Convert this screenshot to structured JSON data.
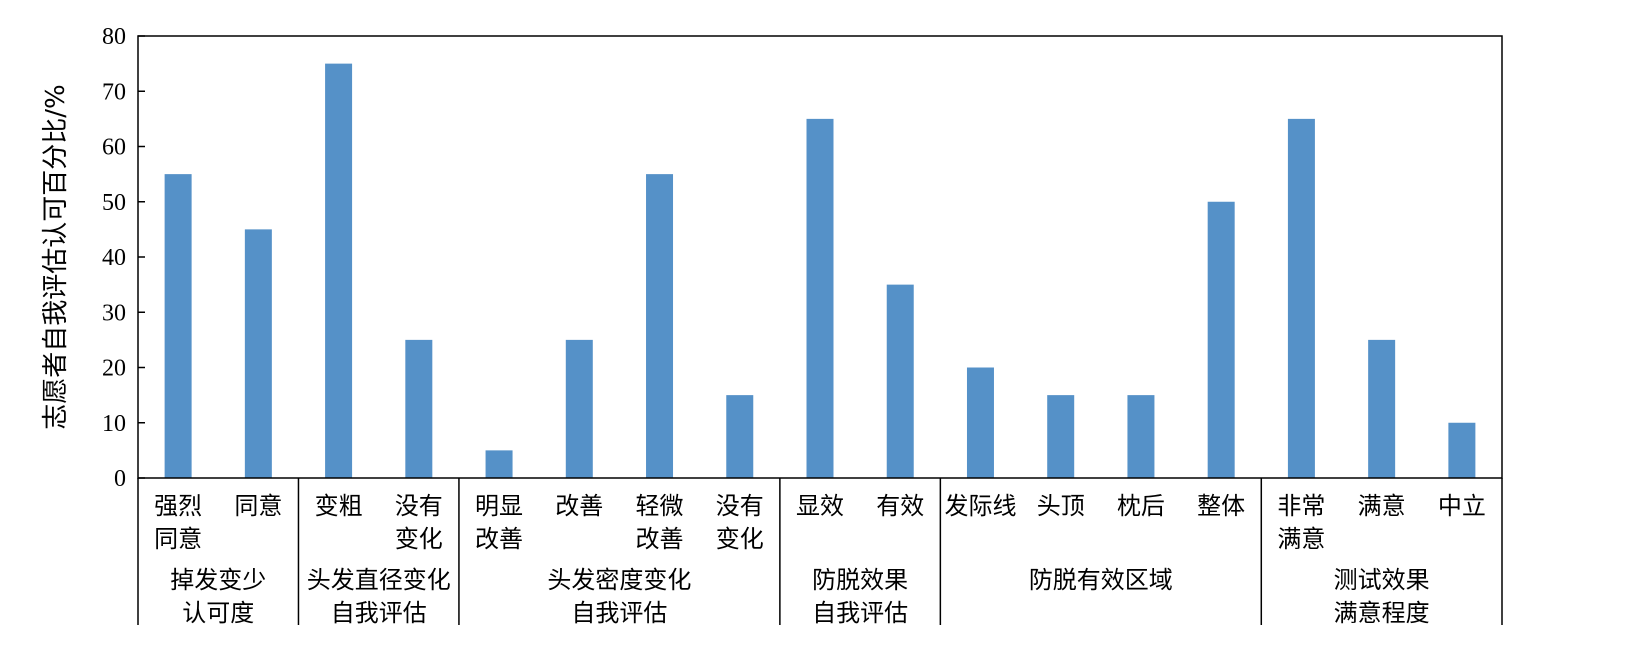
{
  "chart_data": {
    "type": "bar",
    "ylabel": "志愿者自我评估认可百分比/%",
    "ylim": [
      0,
      80
    ],
    "yticks": [
      0,
      10,
      20,
      30,
      40,
      50,
      60,
      70,
      80
    ],
    "grid": false,
    "legend": "none",
    "bar_color": "#5591c8",
    "groups": [
      {
        "label": [
          "掉发变少",
          "认可度"
        ],
        "categories": [
          {
            "label": [
              "强烈",
              "同意"
            ],
            "value": 55
          },
          {
            "label": [
              "同意"
            ],
            "value": 45
          }
        ]
      },
      {
        "label": [
          "头发直径变化",
          "自我评估"
        ],
        "categories": [
          {
            "label": [
              "变粗"
            ],
            "value": 75
          },
          {
            "label": [
              "没有",
              "变化"
            ],
            "value": 25
          }
        ]
      },
      {
        "label": [
          "头发密度变化",
          "自我评估"
        ],
        "categories": [
          {
            "label": [
              "明显",
              "改善"
            ],
            "value": 5
          },
          {
            "label": [
              "改善"
            ],
            "value": 25
          },
          {
            "label": [
              "轻微",
              "改善"
            ],
            "value": 55
          },
          {
            "label": [
              "没有",
              "变化"
            ],
            "value": 15
          }
        ]
      },
      {
        "label": [
          "防脱效果",
          "自我评估"
        ],
        "categories": [
          {
            "label": [
              "显效"
            ],
            "value": 65
          },
          {
            "label": [
              "有效"
            ],
            "value": 35
          }
        ]
      },
      {
        "label": [
          "防脱有效区域"
        ],
        "categories": [
          {
            "label": [
              "发际线"
            ],
            "value": 20
          },
          {
            "label": [
              "头顶"
            ],
            "value": 15
          },
          {
            "label": [
              "枕后"
            ],
            "value": 15
          },
          {
            "label": [
              "整体"
            ],
            "value": 50
          }
        ]
      },
      {
        "label": [
          "测试效果",
          "满意程度"
        ],
        "categories": [
          {
            "label": [
              "非常",
              "满意"
            ],
            "value": 65
          },
          {
            "label": [
              "满意"
            ],
            "value": 25
          },
          {
            "label": [
              "中立"
            ],
            "value": 10
          }
        ]
      }
    ]
  }
}
